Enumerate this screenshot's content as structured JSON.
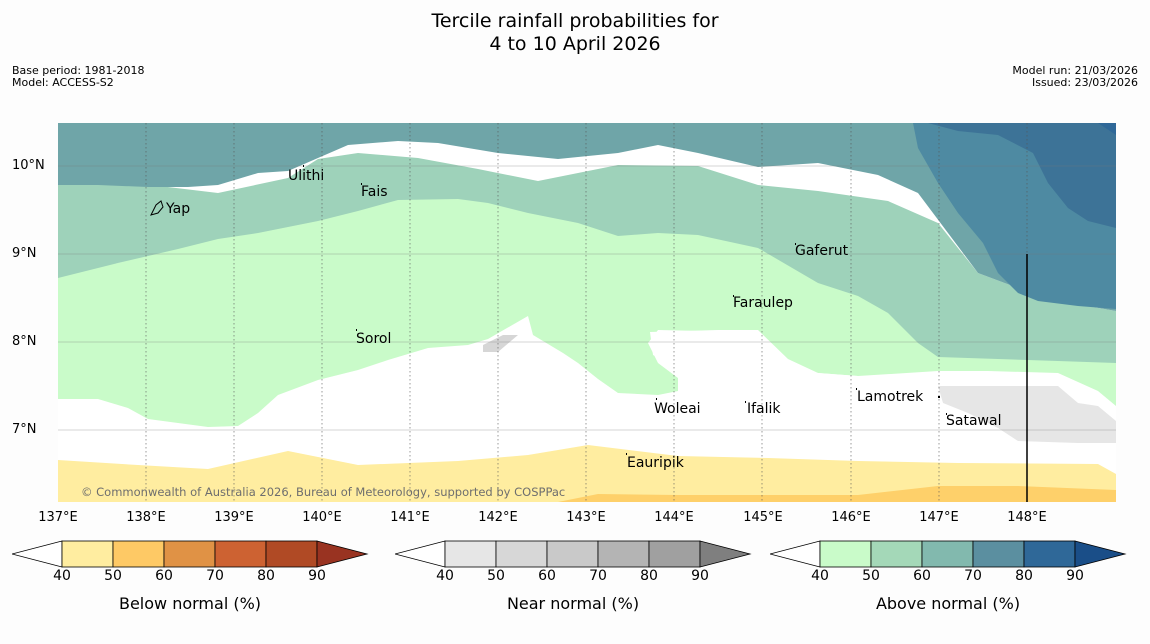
{
  "title": {
    "line1": "Tercile rainfall probabilities for",
    "line2": "4 to 10 April 2026"
  },
  "meta_left": {
    "base_period": "Base period: 1981-2018",
    "model": "Model: ACCESS-S2"
  },
  "meta_right": {
    "model_run": "Model run: 21/03/2026",
    "issued": "Issued: 23/03/2026"
  },
  "lat_labels": [
    "10°N",
    "9°N",
    "8°N",
    "7°N"
  ],
  "lon_labels": [
    "137°E",
    "138°E",
    "139°E",
    "140°E",
    "141°E",
    "142°E",
    "143°E",
    "144°E",
    "145°E",
    "146°E",
    "147°E",
    "148°E"
  ],
  "places": [
    "Yap",
    "Ulithi",
    "Fais",
    "Gaferut",
    "Faraulep",
    "Sorol",
    "Woleai",
    "Ifalik",
    "Lamotrek",
    "Satawal",
    "Eauripik"
  ],
  "copyright": "© Commonwealth of Australia 2026, Bureau of Meteorology, supported by COSPPac",
  "colorbars": {
    "below": {
      "label": "Below normal (%)",
      "ticks": [
        "40",
        "50",
        "60",
        "70",
        "80",
        "90"
      ],
      "colors": [
        "#ffeda0",
        "#fec965",
        "#e09245",
        "#cd6232",
        "#b04a25",
        "#993321"
      ]
    },
    "near": {
      "label": "Near normal (%)",
      "ticks": [
        "40",
        "50",
        "60",
        "70",
        "80",
        "90"
      ],
      "colors": [
        "#e6e6e6",
        "#d7d7d7",
        "#c9c9c9",
        "#b4b4b4",
        "#a0a0a0",
        "#7f7f7f"
      ]
    },
    "above": {
      "label": "Above normal (%)",
      "ticks": [
        "40",
        "50",
        "60",
        "70",
        "80",
        "90"
      ],
      "colors": [
        "#c9fbc9",
        "#a4d8b8",
        "#82b9ae",
        "#5b8fa0",
        "#2f6898",
        "#1a4e88"
      ]
    }
  },
  "map_colors": {
    "white": "#ffffff",
    "below_40": "#ffeda0",
    "below_50": "#fed06a",
    "near_40": "#e6e6e6",
    "near_50": "#d6d6d6",
    "above_40": "#c9fbc9",
    "above_50": "#9ed2ba",
    "above_60": "#6fa5a8",
    "above_70": "#4e8aa2",
    "above_80": "#3d7397"
  }
}
